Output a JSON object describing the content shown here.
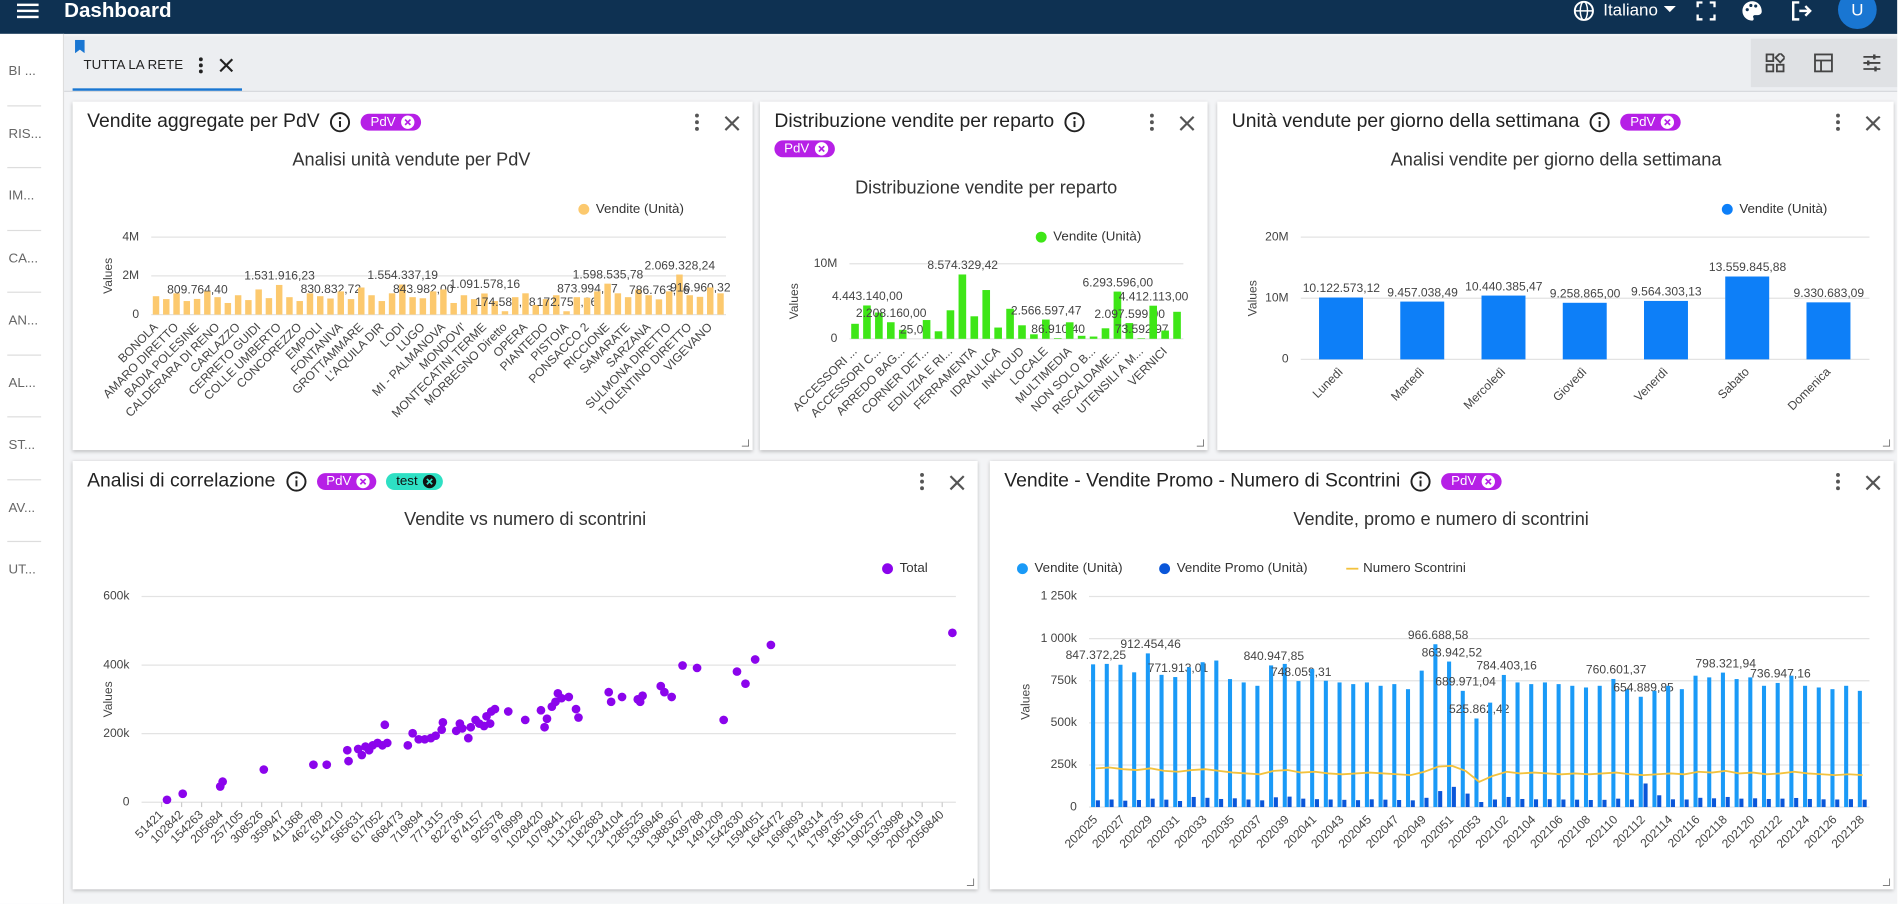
{
  "header": {
    "title": "Dashboard",
    "language": "Italiano",
    "avatar": "U"
  },
  "sidebar": [
    "BI ...",
    "RIS...",
    "IM...",
    "CA...",
    "AN...",
    "AL...",
    "ST...",
    "AV...",
    "UT..."
  ],
  "tab": "TUTTA LA RETE",
  "panels": [
    {
      "title": "Vendite aggregate per PdV",
      "tags": [
        "PdV"
      ]
    },
    {
      "title": "Distribuzione vendite per reparto",
      "tags": [
        "PdV"
      ]
    },
    {
      "title": "Unità vendute per giorno della settimana",
      "tags": [
        "PdV"
      ]
    },
    {
      "title": "Analisi di correlazione",
      "tags": [
        "PdV",
        "test"
      ]
    },
    {
      "title": "Vendite - Vendite Promo - Numero di Scontrini",
      "tags": [
        "PdV"
      ]
    }
  ],
  "chart_data": [
    {
      "type": "bar",
      "title": "Analisi unità vendute per PdV",
      "ylabel": "Values",
      "legend": "top-right",
      "grid": true,
      "categories": [
        "BONOLA",
        null,
        "AMARO DIRETTO",
        null,
        "BADIA POLESINE",
        null,
        "CALDERARA DI RENO",
        null,
        "CARLAZZO",
        null,
        "CERRETO GUIDI",
        null,
        "COLLE UMBERTO",
        null,
        "CONCOREZZO",
        null,
        "EMPOLI",
        null,
        "FONTANIVA",
        null,
        "GROTTAMMARE",
        null,
        "L'AQUILA DIR",
        null,
        "LODI",
        null,
        "LUGO",
        null,
        "MI - PALMANOVA",
        null,
        "MONDOVI'",
        null,
        "MONTECATINI TERME",
        null,
        "MORBEGNO Diretto",
        null,
        "OPERA",
        null,
        "PIANTEDO",
        null,
        "PISTOIA",
        null,
        "PONSACCO 2",
        null,
        "RICCIONE",
        null,
        "SAMARATE",
        null,
        "SARZANA",
        null,
        "SULMONA DIRETTO",
        null,
        "TOLENTINO DIRETTO",
        null,
        "VIGEVANO",
        null
      ],
      "series": [
        {
          "name": "Vendite (Unità)",
          "color": "#fcc96e",
          "values": [
            950000,
            800000,
            1100000,
            700000,
            809764.4,
            1200000,
            900000,
            600000,
            1000000,
            750000,
            1300000,
            850000,
            1531916.23,
            900000,
            700000,
            1100000,
            950000,
            830832.72,
            1200000,
            800000,
            1400000,
            1000000,
            700000,
            1100000,
            1554337.19,
            900000,
            843982,
            1200000,
            1300000,
            600000,
            1000000,
            800000,
            1091578.16,
            700000,
            174589.08,
            900000,
            1100000,
            500000,
            800000,
            1000000,
            172752.26,
            900000,
            873994.47,
            1200000,
            1598535.78,
            1100000,
            900000,
            1300000,
            1000000,
            786763.46,
            1200000,
            2069328.24,
            1000000,
            916960.32,
            1400000,
            1100000
          ],
          "value_labels": [
            null,
            null,
            null,
            null,
            "809.764,40",
            null,
            null,
            null,
            null,
            null,
            null,
            null,
            "1.531.916,23",
            null,
            null,
            null,
            null,
            "830.832,72",
            null,
            null,
            null,
            null,
            null,
            null,
            "1.554.337,19",
            null,
            "843.982,00",
            null,
            null,
            null,
            null,
            null,
            "1.091.578,16",
            null,
            "174.589,08",
            null,
            null,
            null,
            null,
            null,
            "172.752,26",
            null,
            "873.994,47",
            null,
            "1.598.535,78",
            null,
            null,
            null,
            null,
            "786.763,46",
            null,
            "2.069.328,24",
            null,
            "916.960,32",
            null,
            null
          ]
        }
      ],
      "ylim": [
        0,
        4000000
      ],
      "yticks": [
        0,
        {
          "value": 2000000,
          "label": "2M"
        },
        {
          "value": 4000000,
          "label": "4M"
        }
      ]
    },
    {
      "type": "bar",
      "title": "Distribuzione vendite per reparto",
      "ylabel": "Values",
      "legend": "top-right",
      "grid": true,
      "categories": [
        "ACCESSORI ...",
        null,
        "ACCESSORI C...",
        null,
        "ARREDO BAG...",
        null,
        "CORNER DET...",
        null,
        "EDILIZIA E RI...",
        null,
        "FERRAMENTA",
        null,
        "IDRAULICA",
        null,
        "INKLOUD",
        null,
        "LOCALE",
        null,
        "MULTIMEDIA",
        null,
        "NON SOLO B...",
        null,
        "RISCALDAME...",
        null,
        "UTENSILI A M...",
        null,
        "VERNICI",
        null
      ],
      "series": [
        {
          "name": "Vendite (Unità)",
          "color": "#3ee617",
          "values": [
            2000000,
            4443140,
            3500000,
            2208160,
            1200000,
            25,
            2500000,
            1000000,
            3800000,
            8574329.42,
            3000000,
            6500000,
            1500000,
            4000000,
            1800000,
            600000,
            2566597.47,
            86910.4,
            2200000,
            400000,
            300000,
            1400000,
            6293596,
            2097599,
            73592.97,
            4412113,
            1100000,
            3600000
          ],
          "value_labels": [
            null,
            "4.443.140,00",
            null,
            "2.208.160,00",
            null,
            "25,00",
            null,
            null,
            null,
            "8.574.329,42",
            null,
            null,
            null,
            null,
            null,
            null,
            "2.566.597,47",
            "86.910,40",
            null,
            null,
            null,
            null,
            "6.293.596,00",
            "2.097.599,00",
            "73.592,97",
            "4.412.113,00",
            null,
            null
          ]
        }
      ],
      "ylim": [
        0,
        10000000
      ],
      "yticks": [
        0,
        {
          "value": 10000000,
          "label": "10M"
        }
      ]
    },
    {
      "type": "bar",
      "title": "Analisi vendite per giorno della settimana",
      "ylabel": "Values",
      "legend": "top-right",
      "grid": true,
      "categories": [
        "Lunedì",
        "Martedì",
        "Mercoledì",
        "Giovedì",
        "Venerdì",
        "Sabato",
        "Domenica"
      ],
      "series": [
        {
          "name": "Vendite (Unità)",
          "color": "#0d7ff8",
          "values": [
            10122573.12,
            9457038.49,
            10440385.47,
            9258865,
            9564303.13,
            13559845.88,
            9330683.09
          ],
          "value_labels": [
            "10.122.573,12",
            "9.457.038,49",
            "10.440.385,47",
            "9.258.865,00",
            "9.564.303,13",
            "13.559.845,88",
            "9.330.683,09"
          ]
        }
      ],
      "ylim": [
        0,
        20000000
      ],
      "yticks": [
        0,
        {
          "value": 10000000,
          "label": "10M"
        },
        {
          "value": 20000000,
          "label": "20M"
        }
      ]
    },
    {
      "type": "scatter",
      "title": "Vendite vs numero di scontrini",
      "ylabel": "Values",
      "legend": "top-right",
      "grid": true,
      "x": [
        65300,
        105700,
        202100,
        208300,
        314000,
        441500,
        475700,
        531700,
        528500,
        556500,
        565800,
        575200,
        584500,
        593800,
        606300,
        618700,
        624900,
        631100,
        684000,
        696400,
        712000,
        727500,
        743100,
        755500,
        771000,
        774100,
        808300,
        817700,
        823900,
        839400,
        845700,
        858100,
        867400,
        879800,
        886100,
        895400,
        898500,
        907800,
        942000,
        985600,
        1026000,
        1035300,
        1041500,
        1054000,
        1063300,
        1069500,
        1078800,
        1097500,
        1116100,
        1122400,
        1200100,
        1206300,
        1234300,
        1274700,
        1280900,
        1287100,
        1333800,
        1343100,
        1361800,
        1389800,
        1427000,
        1495400,
        1529600,
        1551400,
        1576300,
        1616700,
        2083000
      ],
      "series": [
        {
          "name": "Total",
          "color": "#8b04ec",
          "values": [
            7100,
            24700,
            45900,
            60000,
            95300,
            109400,
            109400,
            120000,
            151700,
            155300,
            137600,
            162300,
            151700,
            165900,
            172900,
            165900,
            225900,
            172900,
            165900,
            201200,
            183500,
            183500,
            187000,
            194100,
            211700,
            232900,
            208200,
            229400,
            215300,
            187000,
            218800,
            240000,
            229400,
            222300,
            250600,
            229400,
            264700,
            271700,
            264700,
            240000,
            268200,
            218800,
            243500,
            278800,
            292900,
            317600,
            303500,
            307000,
            271700,
            247000,
            321100,
            292900,
            307000,
            300000,
            292900,
            310600,
            338800,
            321100,
            307000,
            398800,
            391700,
            240000,
            381100,
            345800,
            416400,
            458800,
            494100
          ]
        }
      ],
      "xlim": [
        0,
        2092000
      ],
      "xticks": [
        51421,
        102842,
        154263,
        205684,
        257105,
        308526,
        359947,
        411368,
        462789,
        514210,
        565631,
        617052,
        668473,
        719894,
        771315,
        822736,
        874157,
        925578,
        976999,
        1028420,
        1079841,
        1131262,
        1182683,
        1234104,
        1285525,
        1336946,
        1388367,
        1439788,
        1491209,
        1542630,
        1594051,
        1645472,
        1696893,
        1748314,
        1799735,
        1851156,
        1902577,
        1953998,
        2005419,
        2056840
      ],
      "ylim": [
        0,
        600000
      ],
      "yticks": [
        0,
        {
          "value": 200000,
          "label": "200k"
        },
        {
          "value": 400000,
          "label": "400k"
        },
        {
          "value": 600000,
          "label": "600k"
        }
      ]
    },
    {
      "type": "bar",
      "title": "Vendite, promo e numero di scontrini",
      "ylabel": "Values",
      "legend": "top-left",
      "grid": true,
      "categories": [
        "202025",
        null,
        "202027",
        null,
        "202029",
        null,
        "202031",
        null,
        "202033",
        null,
        "202035",
        null,
        "202037",
        null,
        "202039",
        null,
        "202041",
        null,
        "202043",
        null,
        "202045",
        null,
        "202047",
        null,
        "202049",
        null,
        "202051",
        null,
        "202053",
        null,
        "202102",
        null,
        "202104",
        null,
        "202106",
        null,
        "202108",
        null,
        "202110",
        null,
        "202112",
        null,
        "202114",
        null,
        "202116",
        null,
        "202118",
        null,
        "202120",
        null,
        "202122",
        null,
        "202124",
        null,
        "202126",
        null,
        "202128"
      ],
      "series": [
        {
          "name": "Vendite (Unità)",
          "color": "#1a9af7",
          "values": [
            847372.25,
            850000,
            845000,
            800000,
            912454.46,
            785000,
            771913.01,
            830000,
            860000,
            870000,
            760000,
            740000,
            720000,
            840947.85,
            850000,
            748059.31,
            820000,
            750000,
            740000,
            730000,
            740000,
            720000,
            730000,
            700000,
            810000,
            966688.58,
            863942.52,
            689971.04,
            525862.42,
            620000,
            784403.16,
            740000,
            730000,
            740000,
            730000,
            720000,
            710000,
            720000,
            760601.37,
            700000,
            654889.85,
            690000,
            720000,
            700000,
            780000,
            770000,
            798321.94,
            760000,
            770000,
            720000,
            736947.16,
            780000,
            720000,
            710000,
            700000,
            720000,
            690000
          ],
          "value_labels": [
            "847.372,25",
            null,
            null,
            null,
            "912.454,46",
            null,
            "771.913,01",
            null,
            null,
            null,
            null,
            null,
            null,
            "840.947,85",
            null,
            "748.059,31",
            null,
            null,
            null,
            null,
            null,
            null,
            null,
            null,
            null,
            "966.688,58",
            "863.942,52",
            "689.971,04",
            "525.862,42",
            null,
            "784.403,16",
            null,
            null,
            null,
            null,
            null,
            null,
            null,
            "760.601,37",
            null,
            "654.889,85",
            null,
            null,
            null,
            null,
            null,
            "798.321,94",
            null,
            null,
            null,
            "736.947,16",
            null,
            null,
            null,
            null,
            null,
            null
          ]
        },
        {
          "name": "Vendite Promo (Unità)",
          "color": "#0a56d9",
          "values": [
            40000,
            45000,
            38000,
            42000,
            50000,
            44000,
            36000,
            60000,
            55000,
            48000,
            52000,
            45000,
            40000,
            58000,
            62000,
            50000,
            47000,
            45000,
            43000,
            41000,
            46000,
            44000,
            42000,
            40000,
            55000,
            95000,
            120000,
            80000,
            30000,
            45000,
            60000,
            48000,
            46000,
            47000,
            45000,
            44000,
            42000,
            43000,
            50000,
            45000,
            140000,
            70000,
            46000,
            45000,
            55000,
            52000,
            60000,
            50000,
            52000,
            48000,
            50000,
            54000,
            48000,
            46000,
            45000,
            47000,
            44000
          ]
        },
        {
          "name": "Numero Scontrini",
          "color": "#f3c23d",
          "type": "line",
          "values": [
            230000,
            235000,
            225000,
            220000,
            230000,
            215000,
            210000,
            220000,
            225000,
            215000,
            205000,
            200000,
            195000,
            215000,
            220000,
            205000,
            210000,
            200000,
            195000,
            200000,
            205000,
            200000,
            195000,
            190000,
            210000,
            240000,
            245000,
            215000,
            150000,
            185000,
            210000,
            200000,
            205000,
            200000,
            195000,
            200000,
            195000,
            200000,
            205000,
            195000,
            190000,
            195000,
            200000,
            195000,
            210000,
            205000,
            215000,
            200000,
            205000,
            195000,
            200000,
            210000,
            200000,
            195000,
            190000,
            195000,
            190000
          ]
        }
      ],
      "ylim": [
        0,
        1250000
      ],
      "yticks": [
        0,
        {
          "value": 250000,
          "label": "250k"
        },
        {
          "value": 500000,
          "label": "500k"
        },
        {
          "value": 750000,
          "label": "750k"
        },
        {
          "value": 1000000,
          "label": "1 000k"
        },
        {
          "value": 1250000,
          "label": "1 250k"
        }
      ]
    }
  ]
}
